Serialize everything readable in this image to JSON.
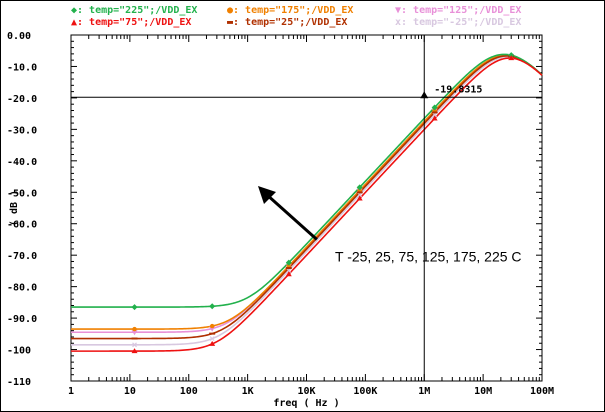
{
  "chart_data": {
    "type": "line",
    "x_scale": "log",
    "xlabel": "freq ( Hz )",
    "ylabel": "( dB )",
    "xlim": [
      1,
      100000000
    ],
    "ylim": [
      -110,
      0
    ],
    "grid": false,
    "legend_position": "top",
    "x_tick_labels": [
      "1",
      "10",
      "100",
      "1K",
      "10K",
      "100K",
      "1M",
      "10M",
      "100M"
    ],
    "x_tick_values": [
      1,
      10,
      100,
      1000,
      10000,
      100000,
      1000000,
      10000000,
      100000000
    ],
    "y_tick_labels": [
      "0.00",
      "-10.0",
      "-20.0",
      "-30.0",
      "-40.0",
      "-50.0",
      "-60.0",
      "-70.0",
      "-80.0",
      "-90.0",
      "-100",
      "-110"
    ],
    "y_tick_values": [
      0,
      -10,
      -20,
      -30,
      -40,
      -50,
      -60,
      -70,
      -80,
      -90,
      -100,
      -110
    ],
    "series": [
      {
        "name": "temp=\"225\";/VDD_EX",
        "marker": "◆",
        "color": "#22b14c",
        "low_freq_db": -86.5,
        "corner_hz": 1000,
        "peak_hz": 12000000,
        "peak_db": -3.2
      },
      {
        "name": "temp=\"175\";/VDD_EX",
        "marker": "●",
        "color": "#f08000",
        "low_freq_db": -93.5,
        "corner_hz": 500,
        "peak_hz": 12000000,
        "peak_db": -3.2
      },
      {
        "name": "temp=\"125\";/VDD_EX",
        "marker": "▼",
        "color": "#e890d8",
        "low_freq_db": -94.5,
        "corner_hz": 450,
        "peak_hz": 12000000,
        "peak_db": -3.2
      },
      {
        "name": "temp=\"75\";/VDD_EX",
        "marker": "▲",
        "color": "#ee1111",
        "low_freq_db": -100.5,
        "corner_hz": 300,
        "peak_hz": 12000000,
        "peak_db": -3.2
      },
      {
        "name": "temp=\"25\";/VDD_EX",
        "marker": "▬",
        "color": "#b03000",
        "low_freq_db": -96.5,
        "corner_hz": 380,
        "peak_hz": 12000000,
        "peak_db": -3.2
      },
      {
        "name": "temp=\"-25\";/VDD_EX",
        "marker": "x",
        "color": "#d8c8e0",
        "low_freq_db": -98.5,
        "corner_hz": 330,
        "peak_hz": 12000000,
        "peak_db": -3.2
      }
    ],
    "markers_x": [
      12,
      250,
      5000,
      80000,
      1500000,
      30000000
    ],
    "cursor": {
      "x": 1000000,
      "y": -19.8,
      "readout": "-19.8315"
    },
    "annotations": [
      {
        "text": "T -25, 25, 75, 125, 175, 225 C",
        "arrow_from": [
          15000,
          -65
        ],
        "arrow_to": [
          1500,
          -48
        ]
      }
    ]
  }
}
